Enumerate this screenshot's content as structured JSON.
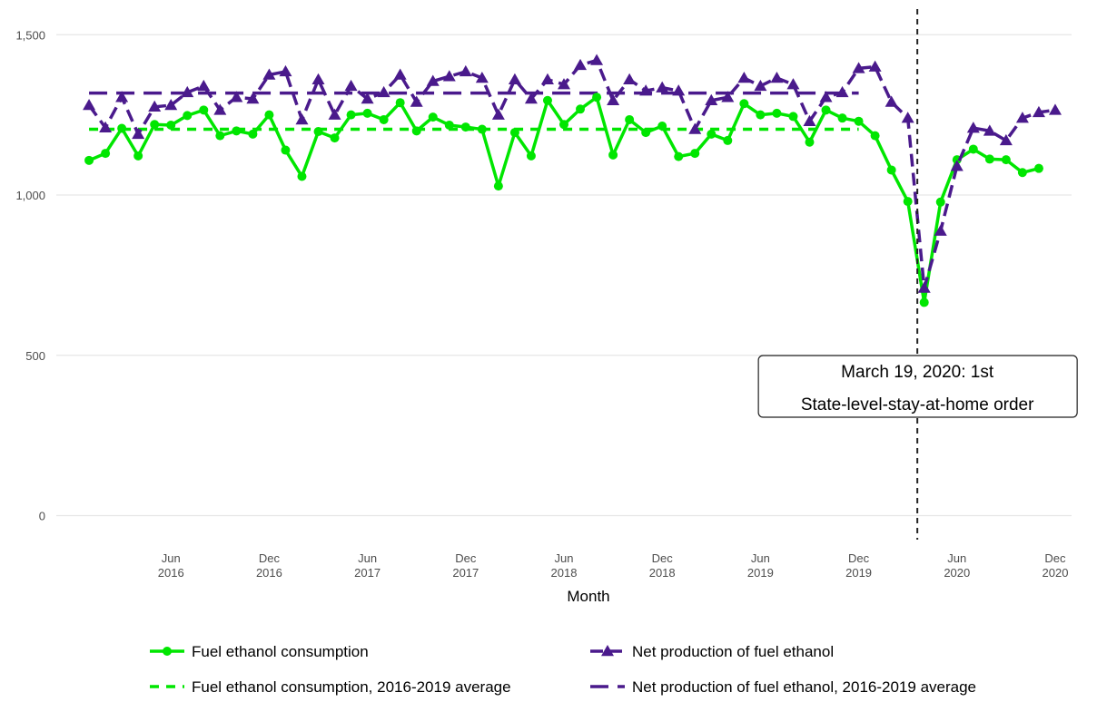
{
  "chart_data": {
    "type": "line",
    "x_title": "Month",
    "x": [
      "2016-01",
      "2016-02",
      "2016-03",
      "2016-04",
      "2016-05",
      "2016-06",
      "2016-07",
      "2016-08",
      "2016-09",
      "2016-10",
      "2016-11",
      "2016-12",
      "2017-01",
      "2017-02",
      "2017-03",
      "2017-04",
      "2017-05",
      "2017-06",
      "2017-07",
      "2017-08",
      "2017-09",
      "2017-10",
      "2017-11",
      "2017-12",
      "2018-01",
      "2018-02",
      "2018-03",
      "2018-04",
      "2018-05",
      "2018-06",
      "2018-07",
      "2018-08",
      "2018-09",
      "2018-10",
      "2018-11",
      "2018-12",
      "2019-01",
      "2019-02",
      "2019-03",
      "2019-04",
      "2019-05",
      "2019-06",
      "2019-07",
      "2019-08",
      "2019-09",
      "2019-10",
      "2019-11",
      "2019-12",
      "2020-01",
      "2020-02",
      "2020-03",
      "2020-04",
      "2020-05",
      "2020-06",
      "2020-07",
      "2020-08",
      "2020-09",
      "2020-10",
      "2020-11",
      "2020-12"
    ],
    "xlim": [
      "2015-11",
      "2021-01"
    ],
    "xticks": [
      {
        "value": "2016-06",
        "label": "Jun 2016"
      },
      {
        "value": "2016-12",
        "label": "Dec 2016"
      },
      {
        "value": "2017-06",
        "label": "Jun 2017"
      },
      {
        "value": "2017-12",
        "label": "Dec 2017"
      },
      {
        "value": "2018-06",
        "label": "Jun 2018"
      },
      {
        "value": "2018-12",
        "label": "Dec 2018"
      },
      {
        "value": "2019-06",
        "label": "Jun 2019"
      },
      {
        "value": "2019-12",
        "label": "Dec 2019"
      },
      {
        "value": "2020-06",
        "label": "Jun 2020"
      },
      {
        "value": "2020-12",
        "label": "Dec 2020"
      }
    ],
    "ylim": [
      -75,
      1580
    ],
    "yticks": [
      0,
      500,
      {
        "value": 1000,
        "label": "1,000"
      },
      {
        "value": 1500,
        "label": "1,500"
      }
    ],
    "grid": true,
    "series": [
      {
        "name": "Fuel ethanol consumption",
        "color": "#00e600",
        "marker": "circle",
        "dash": "solid",
        "values": [
          1108,
          1130,
          1208,
          1122,
          1220,
          1218,
          1248,
          1265,
          1185,
          1200,
          1190,
          1250,
          1140,
          1058,
          1198,
          1178,
          1250,
          1255,
          1235,
          1288,
          1200,
          1243,
          1218,
          1212,
          1205,
          1028,
          1195,
          1122,
          1295,
          1220,
          1268,
          1305,
          1125,
          1235,
          1195,
          1215,
          1120,
          1130,
          1190,
          1170,
          1285,
          1250,
          1255,
          1245,
          1165,
          1265,
          1240,
          1230,
          1185,
          1078,
          980,
          665,
          978,
          1110,
          1143,
          1112,
          1110,
          1070,
          1083,
          null
        ]
      },
      {
        "name": "Net production of fuel ethanol",
        "color": "#4a1a8c",
        "marker": "triangle",
        "dash": "dashed",
        "values": [
          1280,
          1210,
          1305,
          1190,
          1275,
          1280,
          1320,
          1340,
          1265,
          1305,
          1300,
          1375,
          1385,
          1235,
          1360,
          1250,
          1340,
          1300,
          1320,
          1375,
          1290,
          1355,
          1370,
          1385,
          1365,
          1250,
          1360,
          1300,
          1360,
          1345,
          1405,
          1420,
          1295,
          1360,
          1325,
          1335,
          1325,
          1205,
          1295,
          1305,
          1365,
          1340,
          1365,
          1345,
          1230,
          1305,
          1320,
          1395,
          1400,
          1290,
          1240,
          710,
          888,
          1090,
          1209,
          1200,
          1170,
          1240,
          1258,
          1265
        ]
      }
    ],
    "hlines": [
      {
        "name": "Fuel ethanol consumption, 2016-2019 average",
        "color": "#00e600",
        "dash": "short",
        "value": 1205,
        "x": [
          "2016-01",
          "2019-12"
        ]
      },
      {
        "name": "Net production of fuel ethanol, 2016-2019 average",
        "color": "#4a1a8c",
        "dash": "long",
        "value": 1318,
        "x": [
          "2016-01",
          "2019-12"
        ]
      }
    ],
    "vline": {
      "x": "2020-03-19",
      "annotation": [
        "March 19, 2020: 1st",
        "State-level-stay-at-home order"
      ]
    }
  }
}
